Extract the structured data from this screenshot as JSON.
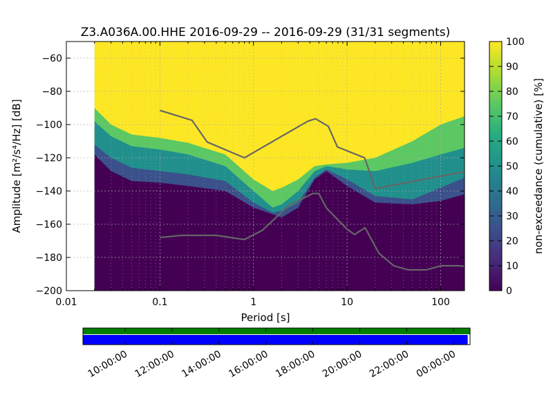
{
  "chart_data": {
    "type": "heatmap",
    "title": "Z3.A036A.00.HHE   2016-09-29 -- 2016-09-29  (31/31 segments)",
    "xlabel": "Period [s]",
    "ylabel": "Amplitude [m²/s⁴/Hz] [dB]",
    "x_scale": "log",
    "xlim": [
      0.01,
      180
    ],
    "ylim": [
      -200,
      -50
    ],
    "x_ticks": [
      {
        "value": 0.01,
        "label": "0.01"
      },
      {
        "value": 0.1,
        "label": "0.1"
      },
      {
        "value": 1,
        "label": "1"
      },
      {
        "value": 10,
        "label": "10"
      },
      {
        "value": 100,
        "label": "100"
      }
    ],
    "y_ticks": [
      {
        "value": -60,
        "label": "−60"
      },
      {
        "value": -80,
        "label": "−80"
      },
      {
        "value": -100,
        "label": "−100"
      },
      {
        "value": -120,
        "label": "−120"
      },
      {
        "value": -140,
        "label": "−140"
      },
      {
        "value": -160,
        "label": "−160"
      },
      {
        "value": -180,
        "label": "−180"
      },
      {
        "value": -200,
        "label": "−200"
      }
    ],
    "grid": true,
    "colorbar": {
      "label": "non-exceedance (cumulative) [%]",
      "range": [
        0,
        100
      ],
      "ticks": [
        {
          "value": 0,
          "label": "0"
        },
        {
          "value": 10,
          "label": "10"
        },
        {
          "value": 20,
          "label": "20"
        },
        {
          "value": 30,
          "label": "30"
        },
        {
          "value": 40,
          "label": "40"
        },
        {
          "value": 50,
          "label": "50"
        },
        {
          "value": 60,
          "label": "60"
        },
        {
          "value": 70,
          "label": "70"
        },
        {
          "value": 80,
          "label": "80"
        },
        {
          "value": 90,
          "label": "90"
        },
        {
          "value": 100,
          "label": "100"
        }
      ]
    },
    "noise_models": {
      "high": {
        "x": [
          0.1,
          0.22,
          0.32,
          0.8,
          3.8,
          4.6,
          6.3,
          7.9,
          15.4,
          20,
          176
        ],
        "y": [
          -91.5,
          -97.4,
          -110.5,
          -120,
          -98,
          -96.5,
          -101,
          -113.5,
          -120,
          -138.5,
          -128.5
        ]
      },
      "low": {
        "x": [
          0.1,
          0.17,
          0.4,
          0.8,
          1.24,
          2.4,
          4.3,
          5,
          6,
          10,
          12,
          15.6,
          21.9,
          31.6,
          45,
          70,
          101,
          154,
          178
        ],
        "y": [
          -168,
          -166.7,
          -166.7,
          -169.2,
          -163.7,
          -148.6,
          -141.5,
          -141.5,
          -150.2,
          -163,
          -166.2,
          -162.1,
          -177.5,
          -185,
          -187.5,
          -187.5,
          -185,
          -185,
          -185.3
        ]
      }
    },
    "percentiles": {
      "period": [
        0.02,
        0.03,
        0.05,
        0.1,
        0.2,
        0.5,
        1,
        1.6,
        2,
        3,
        4.5,
        6,
        10,
        20,
        50,
        100,
        180
      ],
      "p_bottom": [
        -118,
        -128,
        -134,
        -135,
        -137,
        -140,
        -150,
        -154,
        -156,
        -150,
        -133,
        -128,
        -137,
        -147,
        -148,
        -146,
        -142
      ],
      "p10": [
        -112,
        -120,
        -126,
        -128,
        -130,
        -134,
        -147,
        -153,
        -152,
        -147,
        -132,
        -127,
        -133,
        -143,
        -145,
        -138,
        -132
      ],
      "p50": [
        -98,
        -107,
        -113,
        -115,
        -118,
        -125,
        -140,
        -150,
        -148,
        -140,
        -128,
        -125,
        -127,
        -128,
        -123,
        -118,
        -114
      ],
      "p90": [
        -90,
        -100,
        -106,
        -108,
        -111,
        -118,
        -133,
        -140,
        -138,
        -133,
        -125,
        -124,
        -123,
        -120,
        -110,
        -100,
        -95
      ]
    },
    "timeline": {
      "tick_labels": [
        "10:00:00",
        "12:00:00",
        "14:00:00",
        "16:00:00",
        "18:00:00",
        "20:00:00",
        "22:00:00",
        "00:00:00"
      ],
      "tick_hours": [
        10,
        12,
        14,
        16,
        18,
        20,
        22,
        24
      ],
      "range_hours": [
        8.2,
        24.7
      ],
      "data_coverage_color": "#008000",
      "psd_coverage_color": "#0000ff",
      "psd_end_hour": 24.6
    }
  },
  "colors": {
    "viridis": [
      "#440154",
      "#472c7a",
      "#3b518b",
      "#2c718e",
      "#21908d",
      "#27ad81",
      "#5cc863",
      "#aadc32",
      "#fde725"
    ],
    "model_line": "#666666",
    "grid": "#aaaaaa"
  }
}
